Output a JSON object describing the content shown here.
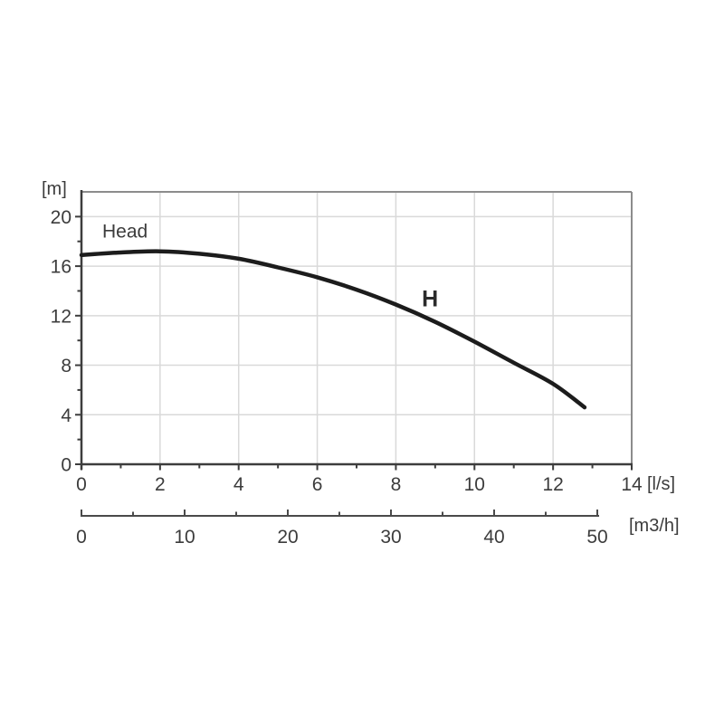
{
  "page": {
    "background_color": "#ffffff"
  },
  "chart_data": {
    "type": "line",
    "title": "",
    "legend_position": "none",
    "grid": "major-only",
    "x_axis": {
      "unit": "[l/s]",
      "range": [
        0,
        14
      ],
      "tick_values": [
        0,
        2,
        4,
        6,
        8,
        10,
        12,
        14
      ],
      "tick_labels": [
        "0",
        "2",
        "4",
        "6",
        "8",
        "10",
        "12",
        "14"
      ],
      "minor_tick_step": 1
    },
    "x_axis_secondary": {
      "unit": "[m3/h]",
      "range": [
        0,
        50
      ],
      "tick_values": [
        0,
        10,
        20,
        30,
        40,
        50
      ],
      "tick_labels": [
        "0",
        "10",
        "20",
        "30",
        "40",
        "50"
      ],
      "minor_tick_step": 5
    },
    "y_axis": {
      "unit": "[m]",
      "range": [
        0,
        22
      ],
      "tick_values": [
        0,
        4,
        8,
        12,
        16,
        20
      ],
      "tick_labels": [
        "0",
        "4",
        "8",
        "12",
        "16",
        "20"
      ],
      "minor_tick_step": 2
    },
    "series": [
      {
        "name": "H",
        "description": "Pump head curve",
        "points": [
          [
            0,
            16.9
          ],
          [
            1,
            17.1
          ],
          [
            2,
            17.2
          ],
          [
            3,
            17.0
          ],
          [
            4,
            16.6
          ],
          [
            5,
            15.9
          ],
          [
            6,
            15.1
          ],
          [
            7,
            14.1
          ],
          [
            8,
            12.9
          ],
          [
            9,
            11.5
          ],
          [
            10,
            9.9
          ],
          [
            11,
            8.2
          ],
          [
            12,
            6.5
          ],
          [
            12.8,
            4.6
          ]
        ]
      }
    ],
    "annotations": [
      {
        "text": "Head",
        "x": 0.53,
        "y": 18.3,
        "bold": false
      },
      {
        "text": "H",
        "x": 8.66,
        "y": 12.75,
        "bold": true
      }
    ],
    "colors": {
      "curve": "#1c1c1c",
      "grid": "#d9d9d9",
      "axis": "#3d3d3d",
      "frame": "#8c8c8c",
      "text": "#3c3c3c"
    }
  }
}
